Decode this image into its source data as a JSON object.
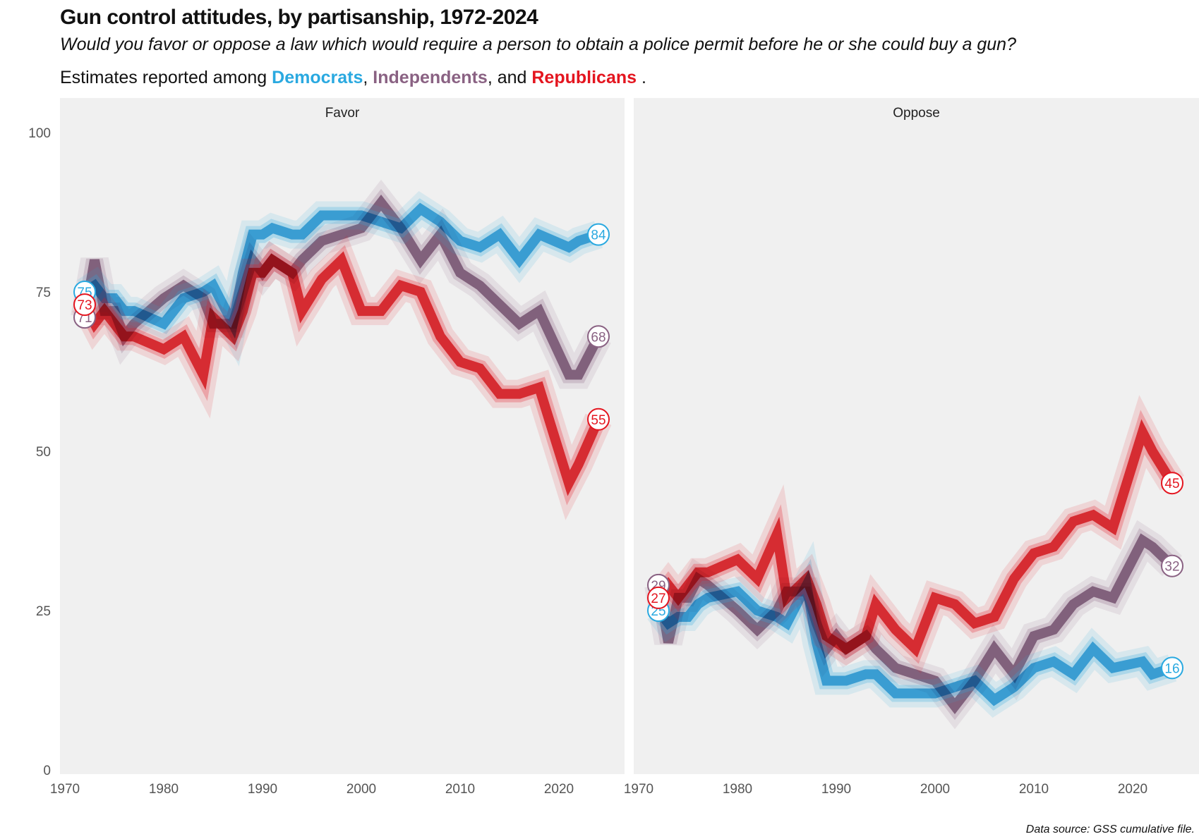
{
  "title": "Gun control attitudes, by partisanship, 1972-2024",
  "subtitle": "Would you favor or oppose a law which would require a person to obtain a police permit before he or she could buy a gun?",
  "legend_line": {
    "prefix": "Estimates reported among",
    "sep1": ",",
    "sep2": ", and",
    "end": ".",
    "dem": "Democrats",
    "ind": "Independents",
    "rep": "Republicans"
  },
  "source": "Data source: GSS cumulative file.",
  "colors": {
    "Democrats": "#2aa9e0",
    "Independents": "#8a6283",
    "Republicans": "#e4151f",
    "panel_bg": "#f0f0f0"
  },
  "chart_data": {
    "type": "line",
    "ylim": [
      0,
      100
    ],
    "xlim": [
      1970,
      2025
    ],
    "yticks": [
      "0",
      "25",
      "50",
      "75",
      "100"
    ],
    "xticks": [
      "1970",
      "1980",
      "1990",
      "2000",
      "2010",
      "2020"
    ],
    "x": [
      1972,
      1973,
      1974,
      1975,
      1976,
      1977,
      1980,
      1982,
      1984,
      1985,
      1987,
      1988,
      1989,
      1990,
      1991,
      1993,
      1994,
      1996,
      1998,
      2000,
      2002,
      2004,
      2006,
      2008,
      2010,
      2012,
      2014,
      2016,
      2018,
      2021,
      2022,
      2024
    ],
    "panels": [
      {
        "facet": "Favor",
        "series": [
          {
            "name": "Democrats",
            "values": [
              75,
              76,
              74,
              74,
              72,
              72,
              70,
              74,
              75,
              76,
              70,
              78,
              84,
              84,
              85,
              84,
              84,
              87,
              87,
              87,
              86,
              85,
              88,
              86,
              83,
              82,
              84,
              80,
              84,
              82,
              83,
              84
            ],
            "start_label": "75",
            "end_label": "84"
          },
          {
            "name": "Independents",
            "values": [
              71,
              80,
              72,
              72,
              68,
              70,
              74,
              76,
              74,
              70,
              70,
              75,
              80,
              78,
              80,
              78,
              80,
              83,
              84,
              85,
              89,
              85,
              80,
              84,
              78,
              76,
              73,
              70,
              72,
              62,
              62,
              68
            ],
            "start_label": "71",
            "end_label": "68"
          },
          {
            "name": "Republicans",
            "values": [
              73,
              70,
              72,
              70,
              68,
              68,
              66,
              68,
              62,
              71,
              68,
              72,
              78,
              78,
              80,
              78,
              72,
              77,
              80,
              72,
              72,
              76,
              75,
              68,
              64,
              63,
              59,
              59,
              60,
              45,
              48,
              55
            ],
            "start_label": "73",
            "end_label": "55"
          }
        ]
      },
      {
        "facet": "Oppose",
        "series": [
          {
            "name": "Democrats",
            "values": [
              25,
              23,
              24,
              24,
              26,
              27,
              28,
              25,
              24,
              23,
              29,
              20,
              14,
              14,
              14,
              15,
              15,
              12,
              12,
              12,
              13,
              14,
              11,
              13,
              16,
              17,
              15,
              19,
              16,
              17,
              15,
              16
            ],
            "start_label": "25",
            "end_label": "16"
          },
          {
            "name": "Independents",
            "values": [
              29,
              20,
              27,
              27,
              30,
              29,
              25,
              22,
              25,
              28,
              28,
              23,
              19,
              21,
              19,
              21,
              19,
              16,
              15,
              14,
              10,
              14,
              19,
              15,
              21,
              22,
              26,
              28,
              27,
              36,
              35,
              32
            ],
            "start_label": "29",
            "end_label": "32"
          },
          {
            "name": "Republicans",
            "values": [
              27,
              29,
              27,
              29,
              31,
              31,
              33,
              30,
              37,
              27,
              30,
              26,
              21,
              20,
              19,
              21,
              26,
              22,
              19,
              27,
              26,
              23,
              24,
              30,
              34,
              35,
              39,
              40,
              38,
              53,
              50,
              45
            ],
            "start_label": "27",
            "end_label": "45"
          }
        ]
      }
    ]
  }
}
